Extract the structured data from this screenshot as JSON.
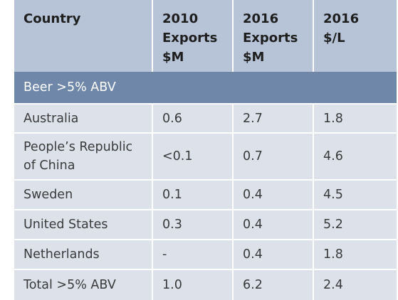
{
  "table": {
    "headers": [
      [
        "Country"
      ],
      [
        "2010",
        "Exports",
        "$M"
      ],
      [
        "2016",
        "Exports",
        "$M"
      ],
      [
        "2016",
        "$/L"
      ]
    ],
    "section_label": "Beer >5% ABV",
    "rows": [
      {
        "country": [
          "Australia"
        ],
        "exports_2010": "0.6",
        "exports_2016": "2.7",
        "price_2016": "1.8"
      },
      {
        "country": [
          "People’s Republic",
          "of China"
        ],
        "exports_2010": "<0.1",
        "exports_2016": "0.7",
        "price_2016": "4.6"
      },
      {
        "country": [
          "Sweden"
        ],
        "exports_2010": "0.1",
        "exports_2016": "0.4",
        "price_2016": "4.5"
      },
      {
        "country": [
          "United States"
        ],
        "exports_2010": "0.3",
        "exports_2016": "0.4",
        "price_2016": "5.2"
      },
      {
        "country": [
          "Netherlands"
        ],
        "exports_2010": "-",
        "exports_2016": "0.4",
        "price_2016": "1.8"
      },
      {
        "country": [
          "Total >5% ABV"
        ],
        "exports_2010": "1.0",
        "exports_2016": "6.2",
        "price_2016": "2.4"
      }
    ],
    "colors": {
      "header_bg": "#b7c4d8",
      "section_bg": "#6f87a9",
      "row_bg": "#dde2ea",
      "divider": "#ffffff"
    }
  }
}
